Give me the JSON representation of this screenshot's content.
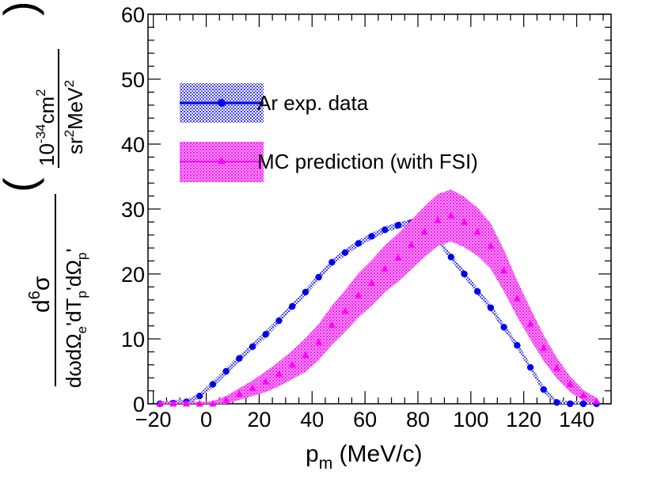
{
  "chart_data": {
    "type": "scatter",
    "xlabel": "p_m (MeV/c)",
    "xlabel_main": "p",
    "xlabel_sub": "m",
    "xlabel_unit": " (MeV/c)",
    "ylabel_numerator": "d6σ",
    "ylabel_denominator": "dωdΩe'dTp'dΩp'",
    "ylabel_unit_numerator": "10-34cm2",
    "ylabel_unit_denominator": "sr2MeV2",
    "xlim": [
      -22,
      153
    ],
    "ylim": [
      0,
      60
    ],
    "xticks": [
      "−20",
      "0",
      "20",
      "40",
      "60",
      "80",
      "100",
      "120",
      "140"
    ],
    "xtick_values": [
      -20,
      0,
      20,
      40,
      60,
      80,
      100,
      120,
      140
    ],
    "yticks": [
      "0",
      "10",
      "20",
      "30",
      "40",
      "50",
      "60"
    ],
    "ytick_values": [
      0,
      10,
      20,
      30,
      40,
      50,
      60
    ],
    "legend_position": "top-left",
    "series": [
      {
        "name": "Ar exp. data",
        "color": "#0000ee",
        "marker": "circle",
        "x": [
          -17.5,
          -12.5,
          -7.5,
          -2.5,
          2.5,
          7.5,
          12.5,
          17.5,
          22.5,
          27.5,
          32.5,
          37.5,
          42.5,
          47.5,
          52.5,
          57.5,
          62.5,
          67.5,
          72.5,
          77.5,
          82.5,
          87.5,
          92.5,
          97.5,
          102.5,
          107.5,
          112.5,
          117.5,
          122.5,
          127.5,
          132.5,
          137.5,
          142.5,
          147.5
        ],
        "y": [
          0.0,
          0.1,
          0.3,
          1.2,
          3.0,
          5.0,
          7.0,
          8.8,
          10.7,
          12.8,
          15.0,
          17.2,
          19.5,
          21.8,
          23.3,
          24.7,
          25.8,
          26.8,
          27.5,
          27.9,
          27.6,
          25.3,
          22.6,
          20.0,
          17.3,
          14.8,
          11.8,
          9.0,
          5.6,
          2.2,
          0.2,
          0.0,
          0.0,
          0.0
        ],
        "band": [
          0.4,
          0.4,
          0.4,
          0.4,
          0.5,
          0.5,
          0.5,
          0.5,
          0.5,
          0.5,
          0.5,
          0.5,
          0.5,
          0.5,
          0.5,
          0.5,
          0.5,
          0.5,
          0.5,
          0.5,
          0.5,
          0.5,
          0.5,
          0.5,
          0.5,
          0.5,
          0.5,
          0.5,
          0.5,
          0.5,
          0.4,
          0.4,
          0.4,
          0.4
        ]
      },
      {
        "name": "MC prediction (with FSI)",
        "color": "#ff00ff",
        "marker": "triangle",
        "x": [
          -17.5,
          -12.5,
          -7.5,
          -2.5,
          2.5,
          7.5,
          12.5,
          17.5,
          22.5,
          27.5,
          32.5,
          37.5,
          42.5,
          47.5,
          52.5,
          57.5,
          62.5,
          67.5,
          72.5,
          77.5,
          82.5,
          87.5,
          92.5,
          97.5,
          102.5,
          107.5,
          112.5,
          117.5,
          122.5,
          127.5,
          132.5,
          137.5,
          142.5,
          147.5
        ],
        "y": [
          0.0,
          0.0,
          0.0,
          0.0,
          0.0,
          0.6,
          1.5,
          2.4,
          3.4,
          4.6,
          6.0,
          7.5,
          9.5,
          12.1,
          14.3,
          16.7,
          18.6,
          20.8,
          22.5,
          24.5,
          26.5,
          28.3,
          29.0,
          28.0,
          26.5,
          24.3,
          20.5,
          16.2,
          12.3,
          8.6,
          5.5,
          3.0,
          1.3,
          0.4
        ],
        "band": [
          0.3,
          0.3,
          0.3,
          0.3,
          0.4,
          0.6,
          0.9,
          1.2,
          1.6,
          1.9,
          2.2,
          2.6,
          2.8,
          3.0,
          3.2,
          3.4,
          3.5,
          3.6,
          3.7,
          3.8,
          3.9,
          4.0,
          4.0,
          3.9,
          3.7,
          3.5,
          3.2,
          2.8,
          2.4,
          2.0,
          1.6,
          1.2,
          0.8,
          0.5
        ]
      }
    ]
  }
}
